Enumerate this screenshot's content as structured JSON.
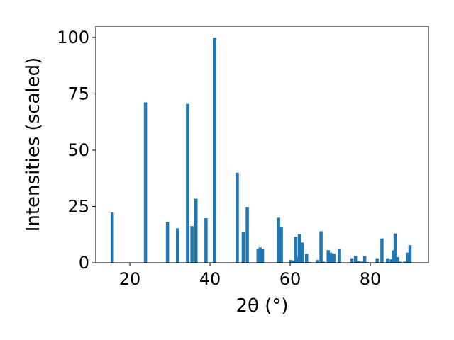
{
  "chart_data": {
    "type": "bar",
    "xlabel": "2θ (°)",
    "ylabel": "Intensities (scaled)",
    "xlim": [
      11.5,
      94.5
    ],
    "ylim": [
      0,
      105
    ],
    "xticks": [
      20,
      40,
      60,
      80
    ],
    "yticks": [
      0,
      25,
      50,
      75,
      100
    ],
    "bar_width": 0.8,
    "bar_color": "#1f77b4",
    "grid": false,
    "legend": "none",
    "x": [
      15.6,
      23.9,
      29.4,
      31.9,
      34.4,
      35.5,
      36.5,
      39.0,
      41.1,
      46.8,
      48.3,
      49.3,
      52.0,
      52.5,
      53.1,
      57.1,
      57.8,
      60.2,
      60.6,
      61.4,
      62.0,
      62.3,
      63.0,
      64.1,
      64.9,
      66.8,
      67.7,
      68.3,
      69.5,
      70.0,
      70.4,
      70.9,
      72.3,
      75.4,
      76.3,
      77.0,
      77.8,
      78.6,
      79.2,
      81.7,
      82.9,
      84.3,
      85.2,
      85.7,
      86.2,
      86.8,
      87.3,
      88.6,
      89.3,
      89.9
    ],
    "values": [
      22.3,
      71.2,
      18.2,
      15.3,
      70.5,
      16.3,
      28.4,
      19.8,
      100.0,
      40.0,
      13.5,
      24.8,
      6.3,
      6.8,
      6.0,
      20.0,
      16.0,
      1.2,
      1.0,
      11.5,
      2.5,
      12.7,
      9.0,
      4.0,
      0.3,
      1.2,
      14.0,
      0.5,
      5.6,
      4.5,
      4.2,
      4.0,
      6.1,
      2.0,
      3.0,
      0.8,
      0.5,
      3.0,
      0.3,
      2.0,
      10.8,
      2.0,
      1.5,
      5.5,
      13.0,
      2.5,
      0.5,
      0.5,
      4.5,
      7.8
    ]
  }
}
